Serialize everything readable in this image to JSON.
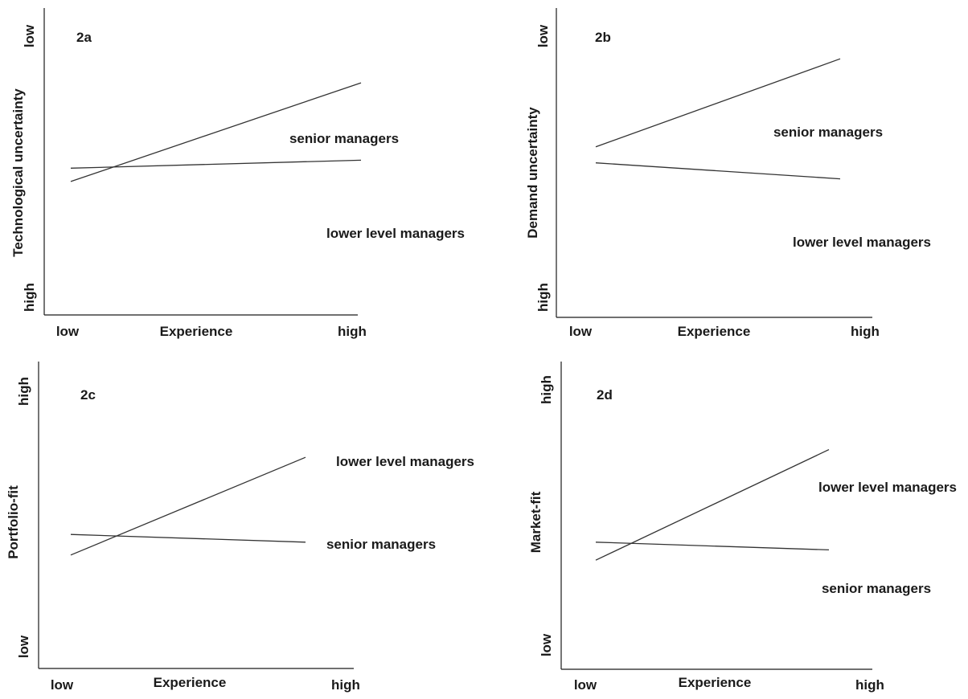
{
  "chart_data": [
    {
      "type": "line",
      "panel_label": "2a",
      "xlabel": "Experience",
      "ylabel": "Technological uncertainty",
      "x_ticks": [
        "low",
        "high"
      ],
      "y_ticks_top_to_bottom": [
        "low",
        "high"
      ],
      "y_inverted": true,
      "x": [
        0,
        1
      ],
      "xlim": [
        0,
        1
      ],
      "ylim": [
        0,
        1
      ],
      "series": [
        {
          "name": "senior managers",
          "values": [
            0.51,
            0.48
          ],
          "label_position": "upper-right"
        },
        {
          "name": "lower level managers",
          "values": [
            0.56,
            0.19
          ],
          "label_position": "right"
        }
      ]
    },
    {
      "type": "line",
      "panel_label": "2b",
      "xlabel": "Experience",
      "ylabel": "Demand uncertainty",
      "x_ticks": [
        "low",
        "high"
      ],
      "y_ticks_top_to_bottom": [
        "low",
        "high"
      ],
      "y_inverted": true,
      "x": [
        0,
        1
      ],
      "xlim": [
        0,
        1
      ],
      "ylim": [
        0,
        1
      ],
      "series": [
        {
          "name": "senior managers",
          "values": [
            0.49,
            0.55
          ],
          "label_position": "upper-right"
        },
        {
          "name": "lower level managers",
          "values": [
            0.43,
            0.1
          ],
          "label_position": "right"
        }
      ]
    },
    {
      "type": "line",
      "panel_label": "2c",
      "xlabel": "Experience",
      "ylabel": "Portfolio-fit",
      "x_ticks": [
        "low",
        "high"
      ],
      "y_ticks_top_to_bottom": [
        "high",
        "low"
      ],
      "y_inverted": false,
      "x": [
        0,
        1
      ],
      "xlim": [
        0,
        1
      ],
      "ylim": [
        0,
        1
      ],
      "series": [
        {
          "name": "lower level managers",
          "values": [
            0.31,
            0.69
          ],
          "label_position": "right"
        },
        {
          "name": "senior managers",
          "values": [
            0.39,
            0.36
          ],
          "label_position": "right"
        }
      ]
    },
    {
      "type": "line",
      "panel_label": "2d",
      "xlabel": "Experience",
      "ylabel": "Market-fit",
      "x_ticks": [
        "low",
        "high"
      ],
      "y_ticks_top_to_bottom": [
        "high",
        "low"
      ],
      "y_inverted": false,
      "x": [
        0,
        1
      ],
      "xlim": [
        0,
        1
      ],
      "ylim": [
        0,
        1
      ],
      "series": [
        {
          "name": "lower level managers",
          "values": [
            0.29,
            0.72
          ],
          "label_position": "right"
        },
        {
          "name": "senior managers",
          "values": [
            0.36,
            0.33
          ],
          "label_position": "lower-right"
        }
      ]
    }
  ]
}
